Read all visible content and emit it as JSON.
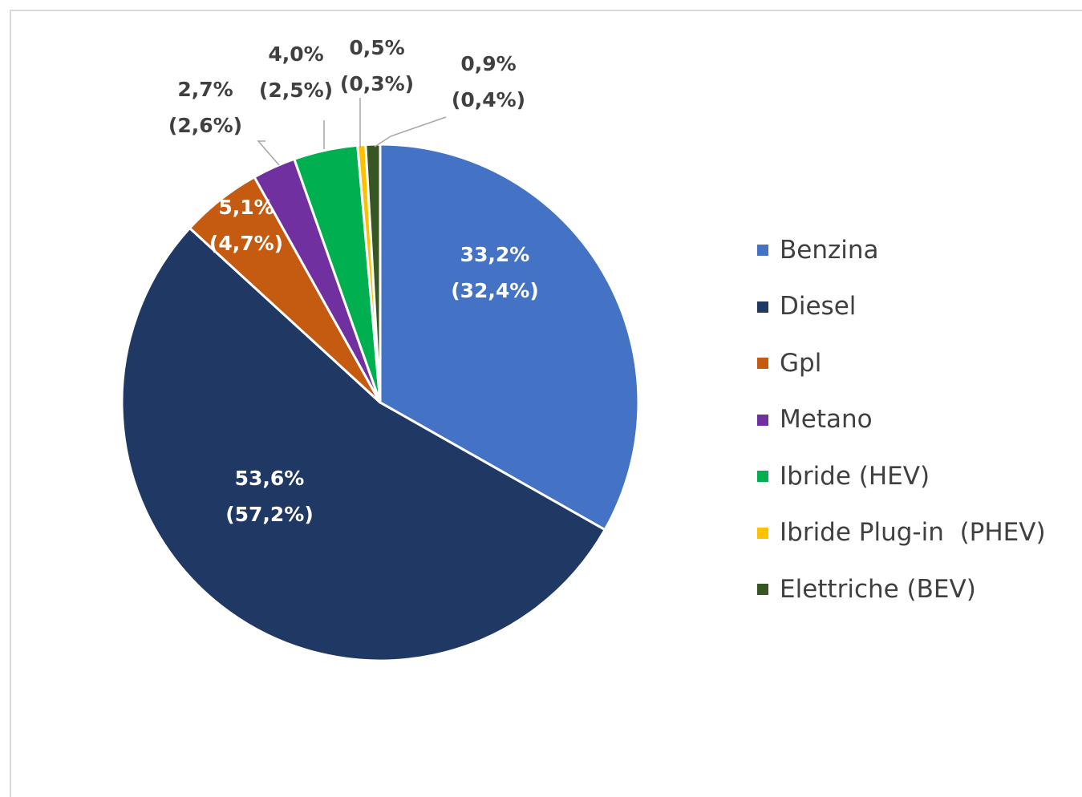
{
  "chart_data": {
    "type": "pie",
    "title": "",
    "slices": [
      {
        "name": "Benzina",
        "value": 33.2,
        "label": "33,2%",
        "label2": "(32,4%)",
        "color": "#4472c4",
        "label_position": "inside"
      },
      {
        "name": "Diesel",
        "value": 53.6,
        "label": "53,6%",
        "label2": "(57,2%)",
        "color": "#203864",
        "label_position": "inside"
      },
      {
        "name": "Gpl",
        "value": 5.1,
        "label": "5,1%",
        "label2": "(4,7%)",
        "color": "#c55a11",
        "label_position": "inside"
      },
      {
        "name": "Metano",
        "value": 2.7,
        "label": "2,7%",
        "label2": "(2,6%)",
        "color": "#7030a0",
        "label_position": "outside"
      },
      {
        "name": "Ibride (HEV)",
        "value": 4.0,
        "label": "4,0%",
        "label2": "(2,5%)",
        "color": "#00b050",
        "label_position": "outside"
      },
      {
        "name": "Ibride Plug-in  (PHEV)",
        "value": 0.5,
        "label": "0,5%",
        "label2": "(0,3%)",
        "color": "#ffc000",
        "label_position": "outside"
      },
      {
        "name": "Elettriche (BEV)",
        "value": 0.9,
        "label": "0,9%",
        "label2": "(0,4%)",
        "color": "#375623",
        "label_position": "outside"
      }
    ],
    "legend_position": "right"
  }
}
